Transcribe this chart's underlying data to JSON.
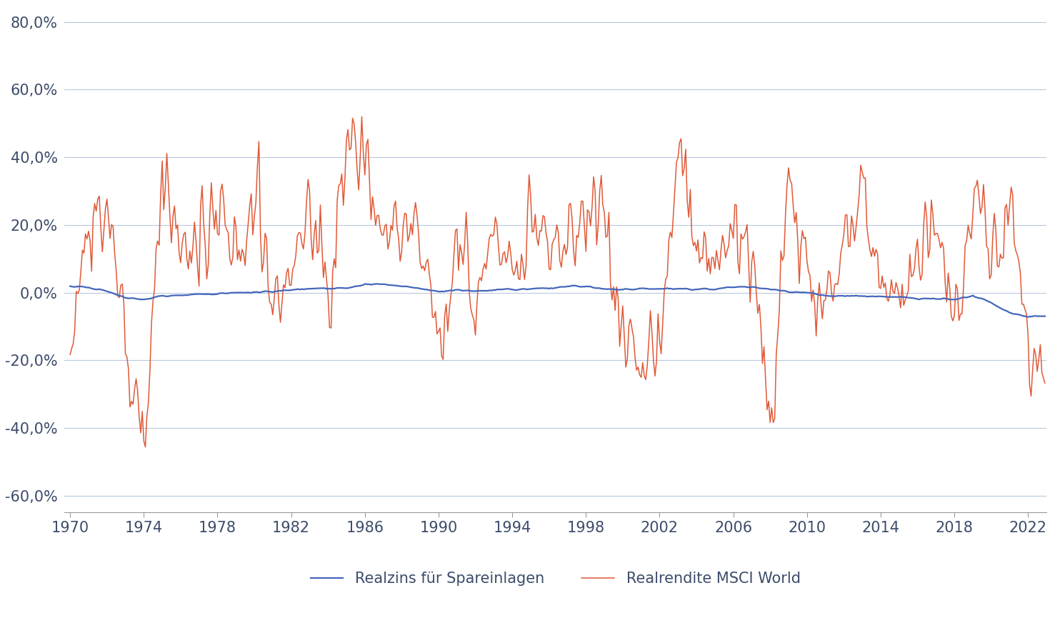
{
  "ylim": [
    -0.65,
    0.85
  ],
  "yticks": [
    -0.6,
    -0.4,
    -0.2,
    0.0,
    0.2,
    0.4,
    0.6,
    0.8
  ],
  "ytick_labels": [
    "-60,0%",
    "-40,0%",
    "-20,0%",
    "0,0%",
    "20,0%",
    "40,0%",
    "60,0%",
    "80,0%"
  ],
  "xticks": [
    1970,
    1974,
    1978,
    1982,
    1986,
    1990,
    1994,
    1998,
    2002,
    2006,
    2010,
    2014,
    2018,
    2022
  ],
  "xlim_left": 1969.7,
  "xlim_right": 2023.0,
  "background_color": "#ffffff",
  "grid_color": "#b8c8e0",
  "text_color": "#3d4d6b",
  "msci_color": "#e05a38",
  "real_rate_color": "#4466bb",
  "legend_label_rate": "Realzins für Spareinlagen",
  "legend_label_msci": "Realrendite MSCI World",
  "msci_annual": {
    "years": [
      1970,
      1971,
      1972,
      1973,
      1974,
      1975,
      1976,
      1977,
      1978,
      1979,
      1980,
      1981,
      1982,
      1983,
      1984,
      1985,
      1986,
      1987,
      1988,
      1989,
      1990,
      1991,
      1992,
      1993,
      1994,
      1995,
      1996,
      1997,
      1998,
      1999,
      2000,
      2001,
      2002,
      2003,
      2004,
      2005,
      2006,
      2007,
      2008,
      2009,
      2010,
      2011,
      2012,
      2013,
      2014,
      2015,
      2016,
      2017,
      2018,
      2019,
      2020,
      2021,
      2022
    ],
    "values": [
      -0.11,
      0.16,
      0.25,
      -0.14,
      -0.44,
      0.3,
      0.13,
      0.14,
      0.28,
      0.12,
      0.22,
      -0.06,
      0.09,
      0.23,
      0.05,
      0.4,
      0.42,
      0.14,
      0.23,
      0.17,
      -0.17,
      0.19,
      -0.06,
      0.22,
      0.06,
      0.21,
      0.14,
      0.16,
      0.25,
      0.25,
      -0.13,
      -0.17,
      -0.19,
      0.34,
      0.15,
      0.1,
      0.2,
      0.09,
      -0.4,
      0.3,
      0.12,
      -0.06,
      0.17,
      0.27,
      0.07,
      0.02,
      0.09,
      0.23,
      -0.1,
      0.27,
      0.16,
      0.21,
      -0.18
    ]
  },
  "rate_annual": {
    "years": [
      1970,
      1971,
      1972,
      1973,
      1974,
      1975,
      1976,
      1977,
      1978,
      1979,
      1980,
      1981,
      1982,
      1983,
      1984,
      1985,
      1986,
      1987,
      1988,
      1989,
      1990,
      1991,
      1992,
      1993,
      1994,
      1995,
      1996,
      1997,
      1998,
      1999,
      2000,
      2001,
      2002,
      2003,
      2004,
      2005,
      2006,
      2007,
      2008,
      2009,
      2010,
      2011,
      2012,
      2013,
      2014,
      2015,
      2016,
      2017,
      2018,
      2019,
      2020,
      2021,
      2022
    ],
    "values": [
      0.02,
      0.015,
      0.005,
      -0.015,
      -0.02,
      -0.01,
      -0.008,
      -0.005,
      -0.005,
      0.0,
      0.002,
      0.003,
      0.01,
      0.012,
      0.012,
      0.012,
      0.025,
      0.025,
      0.018,
      0.012,
      0.003,
      0.005,
      0.005,
      0.008,
      0.01,
      0.012,
      0.012,
      0.018,
      0.018,
      0.01,
      0.01,
      0.012,
      0.01,
      0.01,
      0.01,
      0.01,
      0.018,
      0.018,
      0.01,
      0.002,
      0.001,
      -0.008,
      -0.01,
      -0.01,
      -0.012,
      -0.012,
      -0.018,
      -0.018,
      -0.02,
      -0.01,
      -0.03,
      -0.06,
      -0.07
    ]
  }
}
